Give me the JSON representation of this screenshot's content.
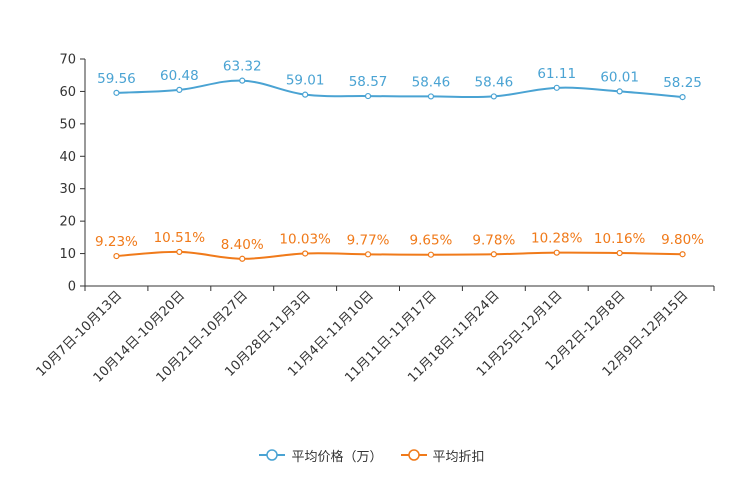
{
  "chart_data": {
    "type": "line",
    "categories": [
      "10月7日-10月13日",
      "10月14日-10月20日",
      "10月21日-10月27日",
      "10月28日-11月3日",
      "11月4日-11月10日",
      "11月11日-11月17日",
      "11月18日-11月24日",
      "11月25日-12月1日",
      "12月2日-12月8日",
      "12月9日-12月15日"
    ],
    "series": [
      {
        "name": "平均价格（万）",
        "color": "#4aa3d3",
        "values": [
          59.56,
          60.48,
          63.32,
          59.01,
          58.57,
          58.46,
          58.46,
          61.11,
          60.01,
          58.25
        ],
        "labels": [
          "59.56",
          "60.48",
          "63.32",
          "59.01",
          "58.57",
          "58.46",
          "58.46",
          "61.11",
          "60.01",
          "58.25"
        ]
      },
      {
        "name": "平均折扣",
        "color": "#f07a1a",
        "values": [
          9.23,
          10.51,
          8.4,
          10.03,
          9.77,
          9.65,
          9.78,
          10.28,
          10.16,
          9.8
        ],
        "labels": [
          "9.23%",
          "10.51%",
          "8.40%",
          "10.03%",
          "9.77%",
          "9.65%",
          "9.78%",
          "10.28%",
          "10.16%",
          "9.80%"
        ]
      }
    ],
    "ylim": [
      0,
      70
    ],
    "yticks": [
      0,
      10,
      20,
      30,
      40,
      50,
      60,
      70
    ],
    "title": "",
    "xlabel": "",
    "ylabel": "",
    "legend_position": "bottom-center"
  },
  "legend": {
    "items": [
      {
        "label": "平均价格（万）",
        "color": "#4aa3d3"
      },
      {
        "label": "平均折扣",
        "color": "#f07a1a"
      }
    ]
  }
}
